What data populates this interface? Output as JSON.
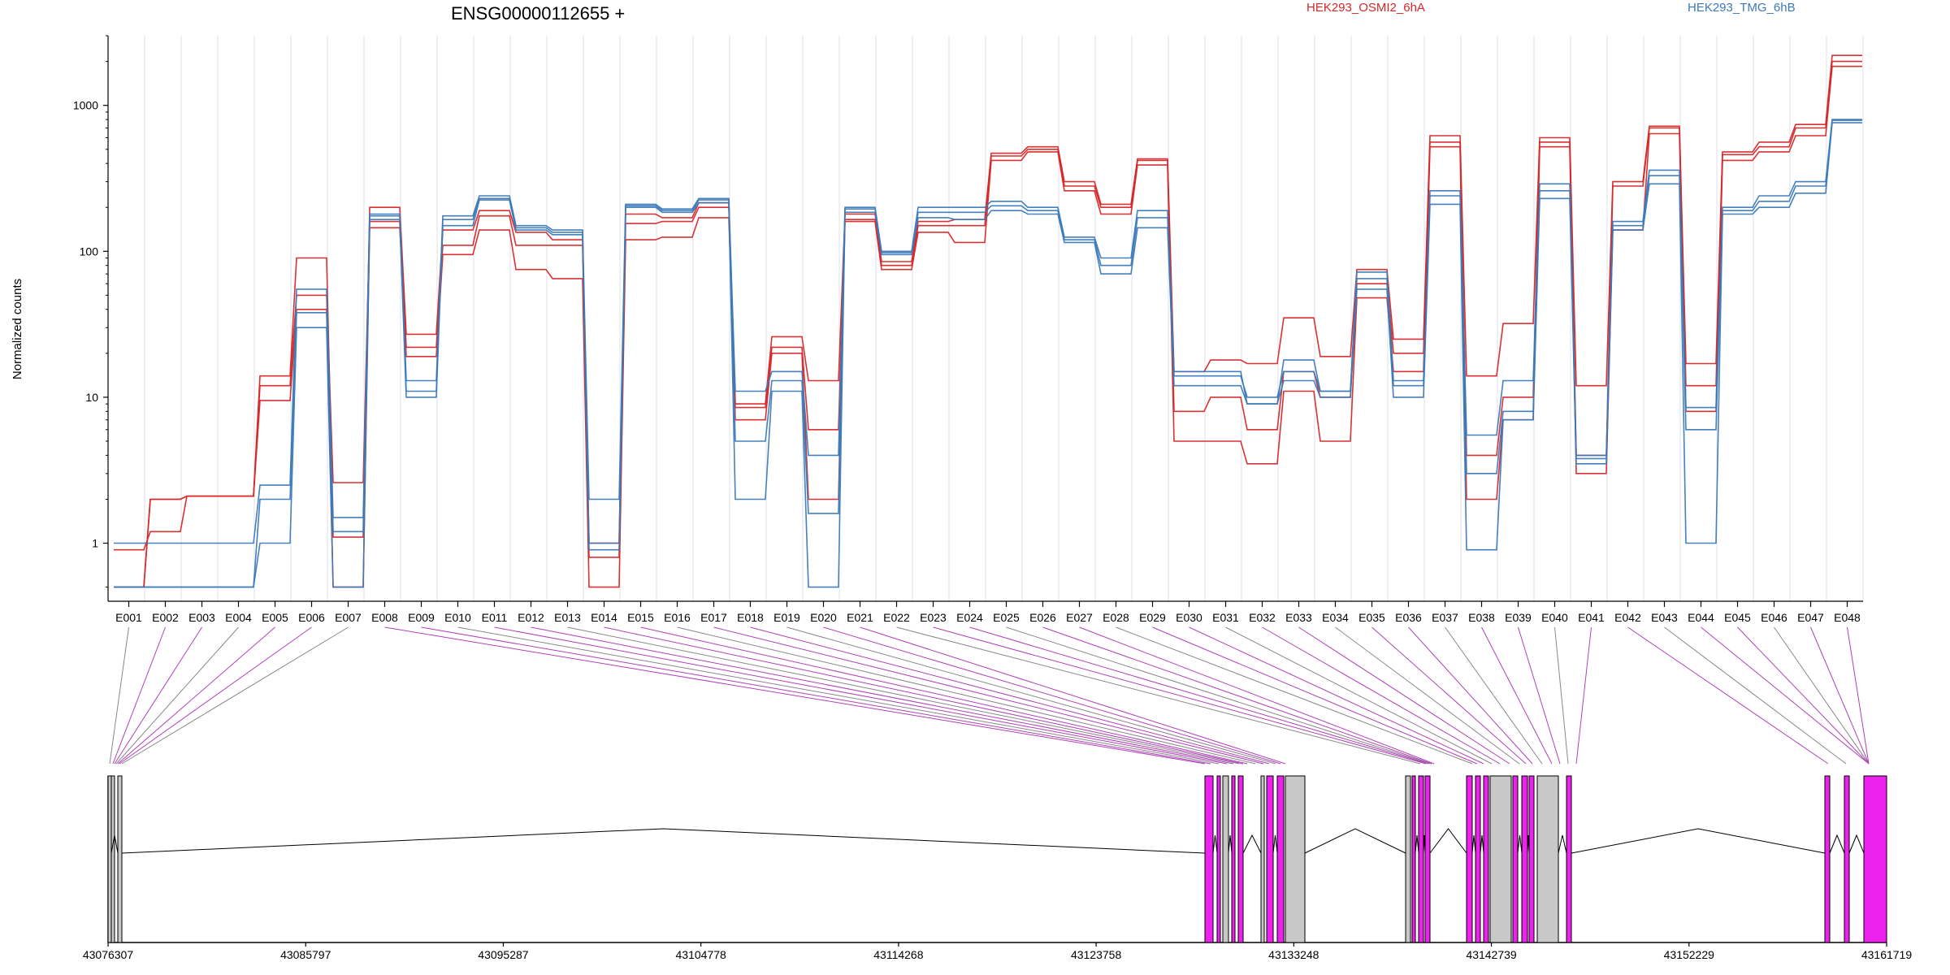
{
  "chart_data": {
    "type": "line",
    "title": "ENSG00000112655 +",
    "ylabel": "Normalized counts",
    "xlabel": "",
    "y_scale": "log",
    "ylim": [
      0.4,
      3000
    ],
    "y_ticks": [
      1,
      10,
      100,
      1000
    ],
    "y_tick_labels": [
      "1",
      "10",
      "100",
      "1000"
    ],
    "grid": "vertical",
    "legend_position": "top",
    "colors": {
      "HEK293_OSMI2_6hA": "#d62728",
      "HEK293_TMG_6hB": "#3b7ab8",
      "exon_highlight": "#ee22ee",
      "exon_plain": "#c8c8c8"
    },
    "categories": [
      "E001",
      "E002",
      "E003",
      "E004",
      "E005",
      "E006",
      "E007",
      "E008",
      "E009",
      "E010",
      "E011",
      "E012",
      "E013",
      "E014",
      "E015",
      "E016",
      "E017",
      "E018",
      "E019",
      "E020",
      "E021",
      "E022",
      "E023",
      "E024",
      "E025",
      "E026",
      "E027",
      "E028",
      "E029",
      "E030",
      "E031",
      "E032",
      "E033",
      "E034",
      "E035",
      "E036",
      "E037",
      "E038",
      "E039",
      "E040",
      "E041",
      "E042",
      "E043",
      "E044",
      "E045",
      "E046",
      "E047",
      "E048"
    ],
    "series": [
      {
        "name": "HEK293_OSMI2_6hA",
        "values": [
          0.5,
          2.0,
          2.1,
          2.1,
          12,
          50,
          2.6,
          160,
          22,
          110,
          175,
          110,
          110,
          0.8,
          155,
          160,
          200,
          8.5,
          22,
          6,
          165,
          80,
          150,
          150,
          450,
          500,
          280,
          200,
          420,
          8,
          10,
          6,
          15,
          10,
          60,
          20,
          560,
          4,
          10,
          560,
          4,
          280,
          700,
          12,
          460,
          520,
          700,
          2000
        ]
      },
      {
        "name": "HEK293_OSMI2_6hA",
        "values": [
          0.9,
          1.2,
          2.1,
          2.1,
          14,
          90,
          1.1,
          200,
          27,
          140,
          190,
          135,
          120,
          1.0,
          180,
          170,
          215,
          9,
          26,
          13,
          180,
          85,
          160,
          165,
          470,
          520,
          300,
          210,
          430,
          15,
          18,
          17,
          35,
          19,
          75,
          25,
          620,
          14,
          32,
          600,
          12,
          300,
          720,
          17,
          480,
          560,
          740,
          2200
        ]
      },
      {
        "name": "HEK293_OSMI2_6hA",
        "values": [
          0.5,
          2.0,
          2.1,
          2.1,
          9.5,
          40,
          0.5,
          145,
          19,
          95,
          140,
          75,
          65,
          0.5,
          120,
          125,
          170,
          7,
          20,
          2,
          160,
          75,
          135,
          115,
          420,
          480,
          260,
          180,
          390,
          5,
          5,
          3.5,
          11,
          5,
          48,
          15,
          520,
          2,
          7,
          520,
          3,
          140,
          640,
          8,
          420,
          480,
          620,
          1850
        ]
      },
      {
        "name": "HEK293_TMG_6hB",
        "values": [
          1.0,
          1.0,
          1.0,
          1.0,
          2.5,
          55,
          1.5,
          180,
          13,
          175,
          240,
          150,
          140,
          2.0,
          210,
          195,
          230,
          11,
          15,
          4,
          200,
          100,
          200,
          200,
          220,
          200,
          125,
          90,
          190,
          15,
          15,
          9,
          18,
          11,
          72,
          13,
          260,
          5.5,
          13,
          290,
          4,
          160,
          360,
          8.5,
          200,
          240,
          300,
          800
        ]
      },
      {
        "name": "HEK293_TMG_6hB",
        "values": [
          0.5,
          0.5,
          0.5,
          0.5,
          1.0,
          30,
          0.5,
          165,
          10,
          150,
          225,
          140,
          130,
          0.9,
          200,
          185,
          215,
          2,
          11,
          0.5,
          185,
          95,
          170,
          165,
          190,
          180,
          115,
          70,
          145,
          12,
          12,
          9,
          13,
          10,
          55,
          10,
          210,
          0.9,
          7,
          230,
          3.5,
          140,
          290,
          1.0,
          180,
          200,
          250,
          760
        ]
      },
      {
        "name": "HEK293_TMG_6hB",
        "values": [
          0.5,
          0.5,
          0.5,
          0.5,
          2.0,
          38,
          1.2,
          175,
          11,
          165,
          230,
          145,
          135,
          1.0,
          205,
          190,
          225,
          5,
          13,
          1.6,
          195,
          98,
          185,
          185,
          205,
          190,
          120,
          80,
          170,
          14,
          14,
          10,
          15,
          11,
          65,
          12,
          240,
          3,
          8,
          260,
          3.8,
          150,
          330,
          6,
          190,
          220,
          280,
          790
        ]
      }
    ],
    "gene_model": {
      "coordinate_ticks": [
        "43076307",
        "43085797",
        "43095287",
        "43104778",
        "43114268",
        "43123758",
        "43133248",
        "43142739",
        "43152229",
        "43161719"
      ]
    }
  }
}
